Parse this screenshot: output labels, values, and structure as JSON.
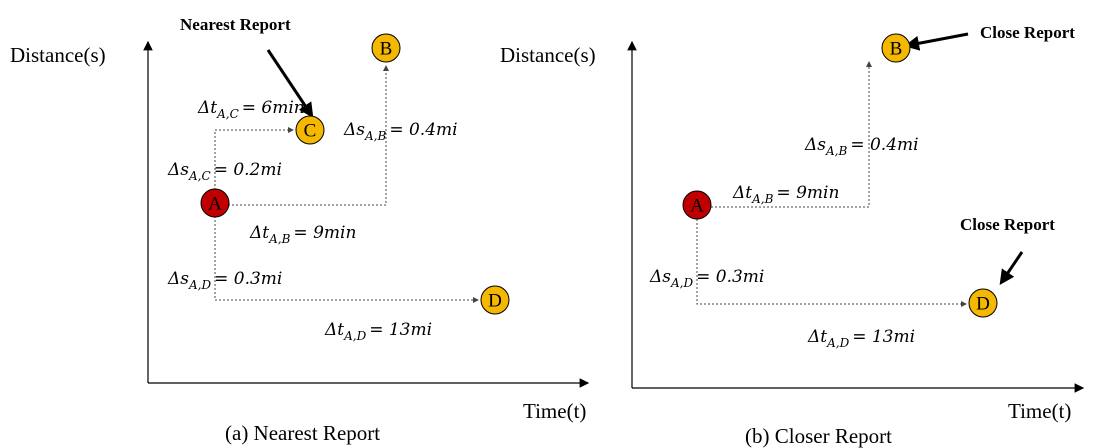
{
  "panels": [
    {
      "caption": "(a) Nearest Report",
      "y_axis_label": "Distance(s)",
      "x_axis_label": "Time(t)",
      "callouts": [
        "Nearest Report"
      ],
      "nodes": [
        "A",
        "B",
        "C",
        "D"
      ],
      "labels": [
        {
          "symbol": "Δt",
          "sub": "A,C",
          "value": "= 6min"
        },
        {
          "symbol": "Δs",
          "sub": "A,B",
          "value": "= 0.4mi"
        },
        {
          "symbol": "Δs",
          "sub": "A,C",
          "value": "= 0.2mi"
        },
        {
          "symbol": "Δt",
          "sub": "A,B",
          "value": "= 9min"
        },
        {
          "symbol": "Δs",
          "sub": "A,D",
          "value": "= 0.3mi"
        },
        {
          "symbol": "Δt",
          "sub": "A,D",
          "value": "= 13mi"
        }
      ]
    },
    {
      "caption": "(b) Closer Report",
      "y_axis_label": "Distance(s)",
      "x_axis_label": "Time(t)",
      "callouts": [
        "Close Report",
        "Close Report"
      ],
      "nodes": [
        "A",
        "B",
        "D"
      ],
      "labels": [
        {
          "symbol": "Δs",
          "sub": "A,B",
          "value": "= 0.4mi"
        },
        {
          "symbol": "Δt",
          "sub": "A,B",
          "value": "= 9min"
        },
        {
          "symbol": "Δs",
          "sub": "A,D",
          "value": "= 0.3mi"
        },
        {
          "symbol": "Δt",
          "sub": "A,D",
          "value": "= 13mi"
        }
      ]
    }
  ]
}
